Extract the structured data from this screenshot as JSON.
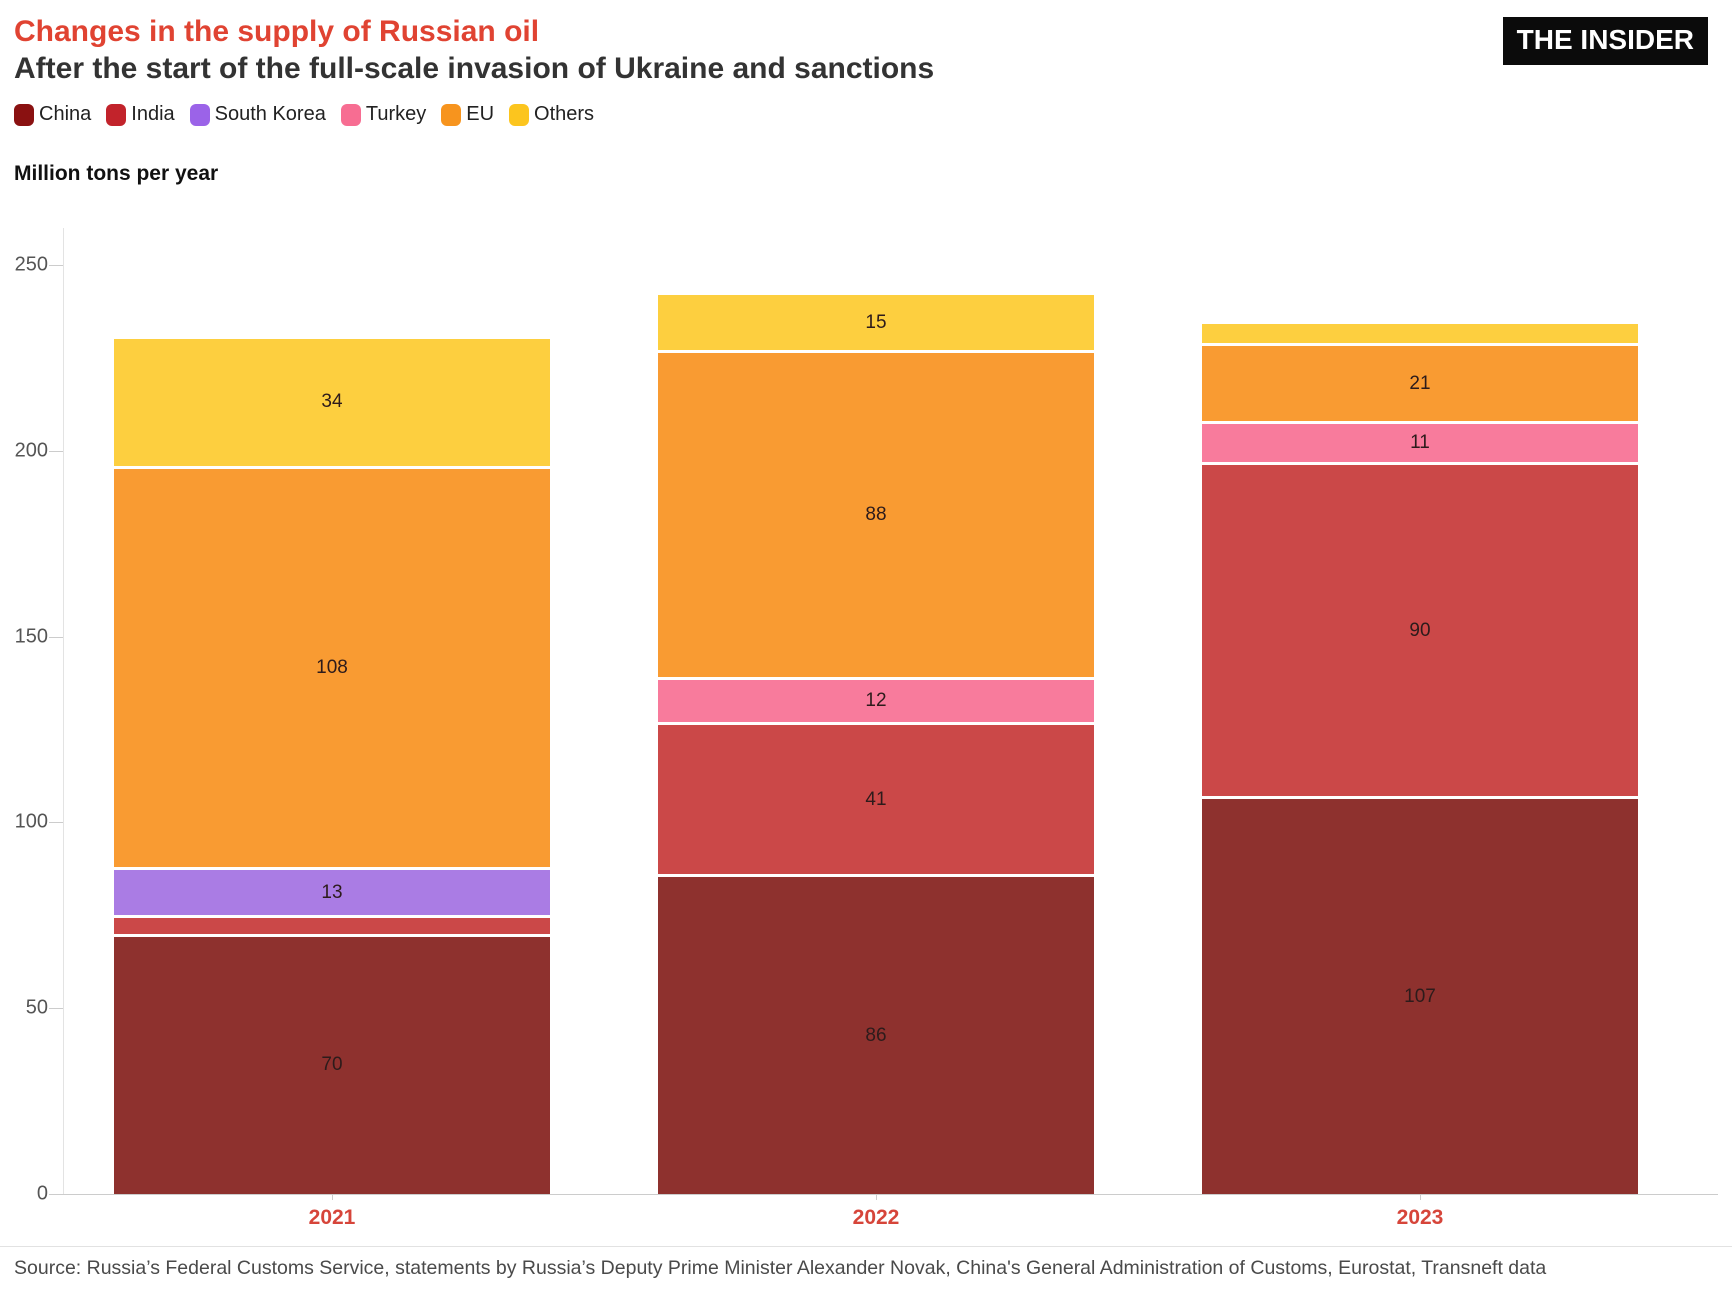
{
  "header": {
    "title": "Changes in the supply of Russian oil",
    "subtitle": "After the start of the full-scale invasion of Ukraine and sanctions",
    "logo": "THE INSIDER"
  },
  "chart_data": {
    "type": "bar",
    "stacked": true,
    "title": "Changes in the supply of Russian oil",
    "subtitle": "After the start of the full-scale invasion of Ukraine and sanctions",
    "ylabel": "Million tons per year",
    "ylim": [
      0,
      250
    ],
    "yticks": [
      0,
      50,
      100,
      150,
      200,
      250
    ],
    "grid": false,
    "legend_position": "top",
    "categories": [
      "2021",
      "2022",
      "2023"
    ],
    "series": [
      {
        "name": "China",
        "color": "#8A1111",
        "bar_color": "#8E312E",
        "values": [
          70,
          86,
          107
        ],
        "labels": [
          "70",
          "86",
          "107"
        ]
      },
      {
        "name": "India",
        "color": "#C2232B",
        "bar_color": "#CB4848",
        "values": [
          5,
          41,
          90
        ],
        "labels": [
          null,
          "41",
          "90"
        ]
      },
      {
        "name": "South Korea",
        "color": "#9B63E8",
        "bar_color": "#AA7CE4",
        "values": [
          13,
          0,
          0
        ],
        "labels": [
          "13",
          null,
          null
        ]
      },
      {
        "name": "Turkey",
        "color": "#F76D92",
        "bar_color": "#F87B9C",
        "values": [
          0,
          12,
          11
        ],
        "labels": [
          null,
          "12",
          "11"
        ]
      },
      {
        "name": "EU",
        "color": "#F7941E",
        "bar_color": "#F99B32",
        "values": [
          108,
          88,
          21
        ],
        "labels": [
          "108",
          "88",
          "21"
        ]
      },
      {
        "name": "Others",
        "color": "#FCC51E",
        "bar_color": "#FDCF3F",
        "values": [
          34,
          15,
          5
        ],
        "labels": [
          "34",
          "15",
          null
        ]
      }
    ],
    "totals": [
      230,
      242,
      234
    ]
  },
  "footer": {
    "source": "Source: Russia’s Federal Customs Service, statements by Russia’s Deputy Prime Minister Alexander Novak, China's General Administration of Customs, Eurostat, Transneft data"
  },
  "colors": {
    "title": "#E04332",
    "subtitle": "#333333",
    "year_label": "#D6453A",
    "tick_label": "#555555"
  }
}
